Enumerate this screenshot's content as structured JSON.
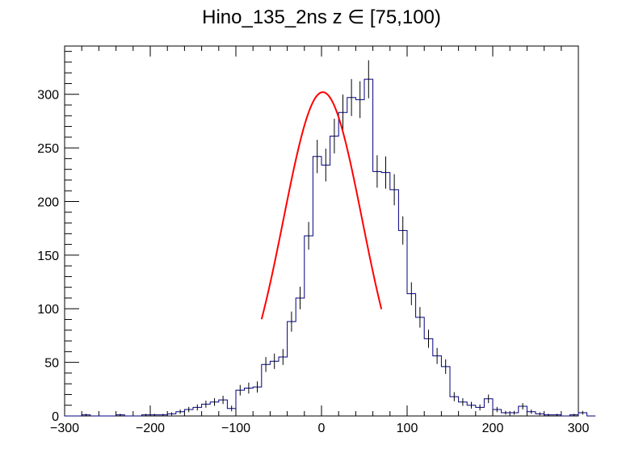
{
  "chart_data": {
    "type": "histogram",
    "title": "Hino_135_2ns z  ∈ [75,100)",
    "xlim": [
      -300,
      300
    ],
    "ylim": [
      0,
      345
    ],
    "x_ticks": [
      -300,
      -200,
      -100,
      0,
      100,
      200,
      300
    ],
    "y_ticks": [
      0,
      50,
      100,
      150,
      200,
      250,
      300
    ],
    "bin_width": 10,
    "bin_edges_start": -300,
    "values": [
      0,
      0,
      1,
      0,
      0,
      0,
      1,
      0,
      0,
      1,
      1,
      1,
      2,
      4,
      6,
      8,
      11,
      13,
      15,
      7,
      24,
      26,
      27,
      48,
      51,
      55,
      88,
      110,
      168,
      242,
      234,
      261,
      283,
      297,
      295,
      314,
      228,
      227,
      211,
      173,
      114,
      92,
      72,
      56,
      46,
      18,
      13,
      10,
      8,
      16,
      6,
      3,
      3,
      9,
      4,
      2,
      1,
      1,
      0,
      1,
      3,
      0
    ],
    "series": [
      {
        "kind": "histogram",
        "color": "#00007f"
      },
      {
        "kind": "gaussian-fit",
        "color": "#ff0000",
        "amplitude": 302,
        "mean": 1.5,
        "sigma": 46,
        "range": [
          -70,
          70
        ]
      }
    ],
    "grid": false
  }
}
